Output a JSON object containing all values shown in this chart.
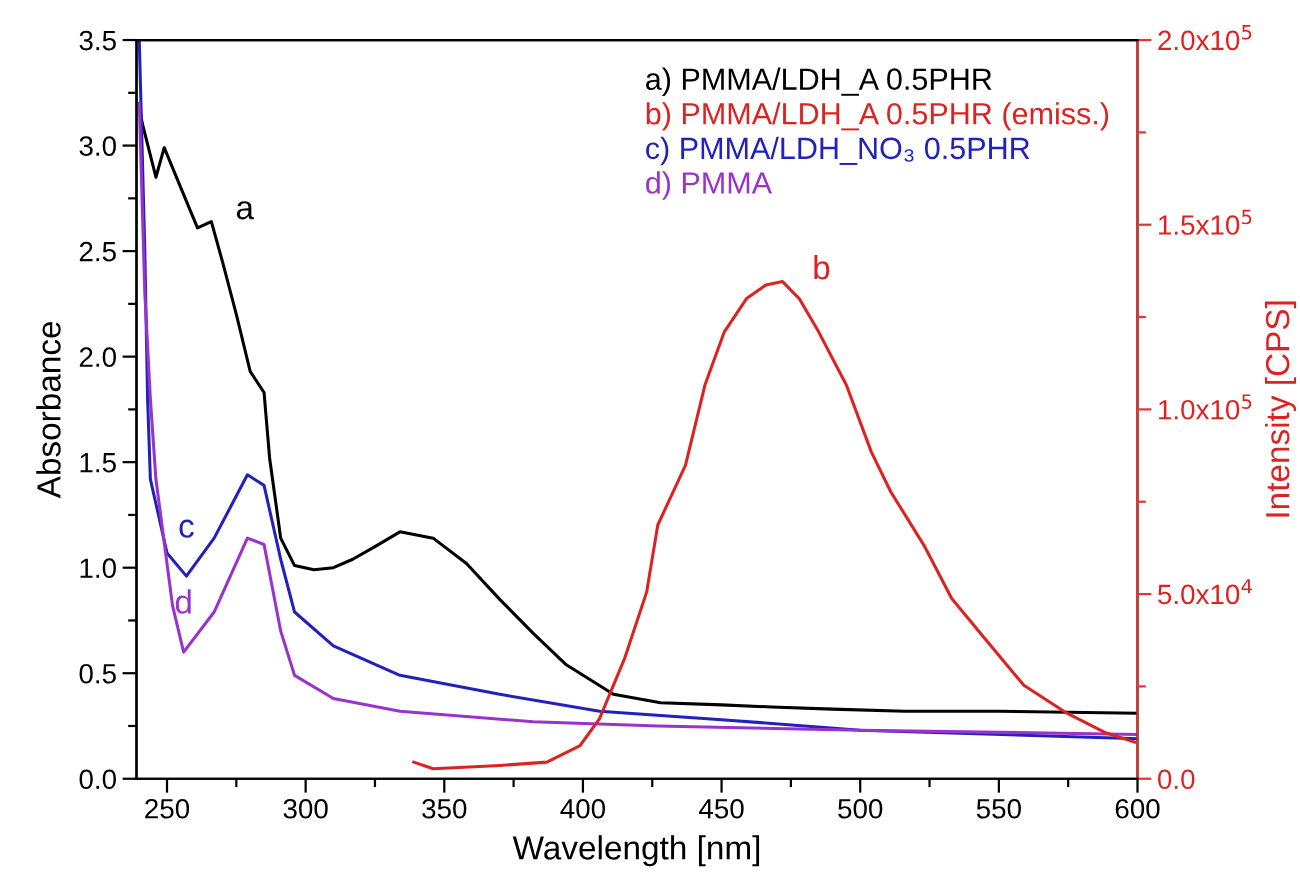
{
  "chart_data": {
    "type": "line",
    "xlabel": "Wavelength [nm]",
    "ylabel": "Absorbance",
    "y2label": "Intensity [CPS]",
    "xlim": [
      239,
      600
    ],
    "ylim": [
      0,
      3.5
    ],
    "y2lim": [
      0,
      200000
    ],
    "xticks": [
      250,
      {
        "value": 275,
        "label": null
      },
      300,
      {
        "value": 325,
        "label": null
      },
      350,
      {
        "value": 375,
        "label": null
      },
      400,
      {
        "value": 425,
        "label": null
      },
      450,
      {
        "value": 475,
        "label": null
      },
      500,
      {
        "value": 525,
        "label": null
      },
      550,
      {
        "value": 575,
        "label": null
      },
      600
    ],
    "yticks": [
      {
        "value": 0,
        "label": "0.0"
      },
      {
        "value": 0.25,
        "label": null
      },
      0.5,
      {
        "value": 0.75,
        "label": null
      },
      {
        "value": 1,
        "label": "1.0"
      },
      {
        "value": 1.25,
        "label": null
      },
      1.5,
      {
        "value": 1.75,
        "label": null
      },
      {
        "value": 2,
        "label": "2.0"
      },
      {
        "value": 2.25,
        "label": null
      },
      2.5,
      {
        "value": 2.75,
        "label": null
      },
      {
        "value": 3,
        "label": "3.0"
      },
      {
        "value": 3.25,
        "label": null
      },
      3.5
    ],
    "y2ticks": [
      {
        "value": 0,
        "label": "0.0"
      },
      {
        "value": 25000,
        "label": null
      },
      {
        "value": 50000,
        "label": "5.0x10$^{4}$"
      },
      {
        "value": 75000,
        "label": null
      },
      {
        "value": 100000,
        "label": "1.0x10$^{5}$"
      },
      {
        "value": 125000,
        "label": null
      },
      {
        "value": 150000,
        "label": "1.5x10$^{5}$"
      },
      {
        "value": 175000,
        "label": null
      },
      {
        "value": 200000,
        "label": "2.0x10$^{5}$"
      }
    ],
    "grid": false,
    "legend": "top right",
    "line_style": "solid",
    "marker": "none",
    "series": [
      {
        "name": "a) PMMA/LDH_A 0.5PHR",
        "color": "#000000",
        "x": [
          240,
          241,
          246,
          249,
          255,
          261,
          266,
          270,
          275,
          280,
          285,
          287,
          291,
          296,
          303,
          310,
          317,
          325,
          334,
          346,
          358,
          370,
          382,
          394,
          411,
          428,
          450,
          468,
          490,
          516,
          550,
          600
        ],
        "values": [
          3.2,
          3.11,
          2.85,
          2.99,
          2.8,
          2.61,
          2.64,
          2.45,
          2.2,
          1.93,
          1.83,
          1.52,
          1.14,
          1.01,
          0.99,
          1.0,
          1.04,
          1.1,
          1.17,
          1.14,
          1.02,
          0.85,
          0.69,
          0.54,
          0.4,
          0.36,
          0.35,
          0.34,
          0.33,
          0.32,
          0.32,
          0.31
        ]
      },
      {
        "name": "b) PMMA/LDH_A 0.5PHR (emiss.)",
        "color": "#dd2222",
        "axis": "y2",
        "x": [
          339,
          346,
          370,
          387,
          399,
          406,
          415,
          423,
          427,
          437,
          444,
          451,
          459,
          466,
          472,
          478,
          485,
          495,
          504,
          511,
          523,
          533,
          545,
          559,
          574,
          588,
          599
        ],
        "values": [
          4500,
          2700,
          3600,
          4500,
          9000,
          16300,
          32500,
          50600,
          68700,
          84900,
          106600,
          121000,
          130000,
          133700,
          134600,
          130000,
          121000,
          106600,
          88500,
          77700,
          63200,
          48800,
          37900,
          25300,
          18000,
          12600,
          9900
        ]
      },
      {
        "name": "c) PMMA/LDH_NO₃ 0.5PHR",
        "color": "#2222bb",
        "x": [
          240,
          242,
          243,
          244,
          250,
          257,
          267,
          279,
          285,
          291,
          296,
          310,
          334,
          370,
          406,
          450,
          500,
          600
        ],
        "values": [
          3.5,
          2.5,
          1.8,
          1.42,
          1.07,
          0.96,
          1.14,
          1.44,
          1.39,
          1.04,
          0.79,
          0.63,
          0.49,
          0.4,
          0.32,
          0.28,
          0.23,
          0.19
        ]
      },
      {
        "name": "d) PMMA",
        "color": "#9933cc",
        "x": [
          240,
          242,
          244,
          246,
          252,
          256,
          267,
          279,
          285,
          291,
          296,
          310,
          334,
          382,
          427,
          500,
          600
        ],
        "values": [
          3.2,
          2.3,
          1.8,
          1.42,
          0.82,
          0.6,
          0.79,
          1.14,
          1.11,
          0.7,
          0.49,
          0.38,
          0.32,
          0.27,
          0.25,
          0.23,
          0.21
        ]
      }
    ],
    "annotations": [
      {
        "text": "a",
        "x": 266,
        "y": 2.64
      },
      "b",
      {
        "text": "c",
        "x": 257,
        "y": 0.96
      },
      {
        "text": "d",
        "x": 256,
        "y": 0.6
      }
    ]
  }
}
